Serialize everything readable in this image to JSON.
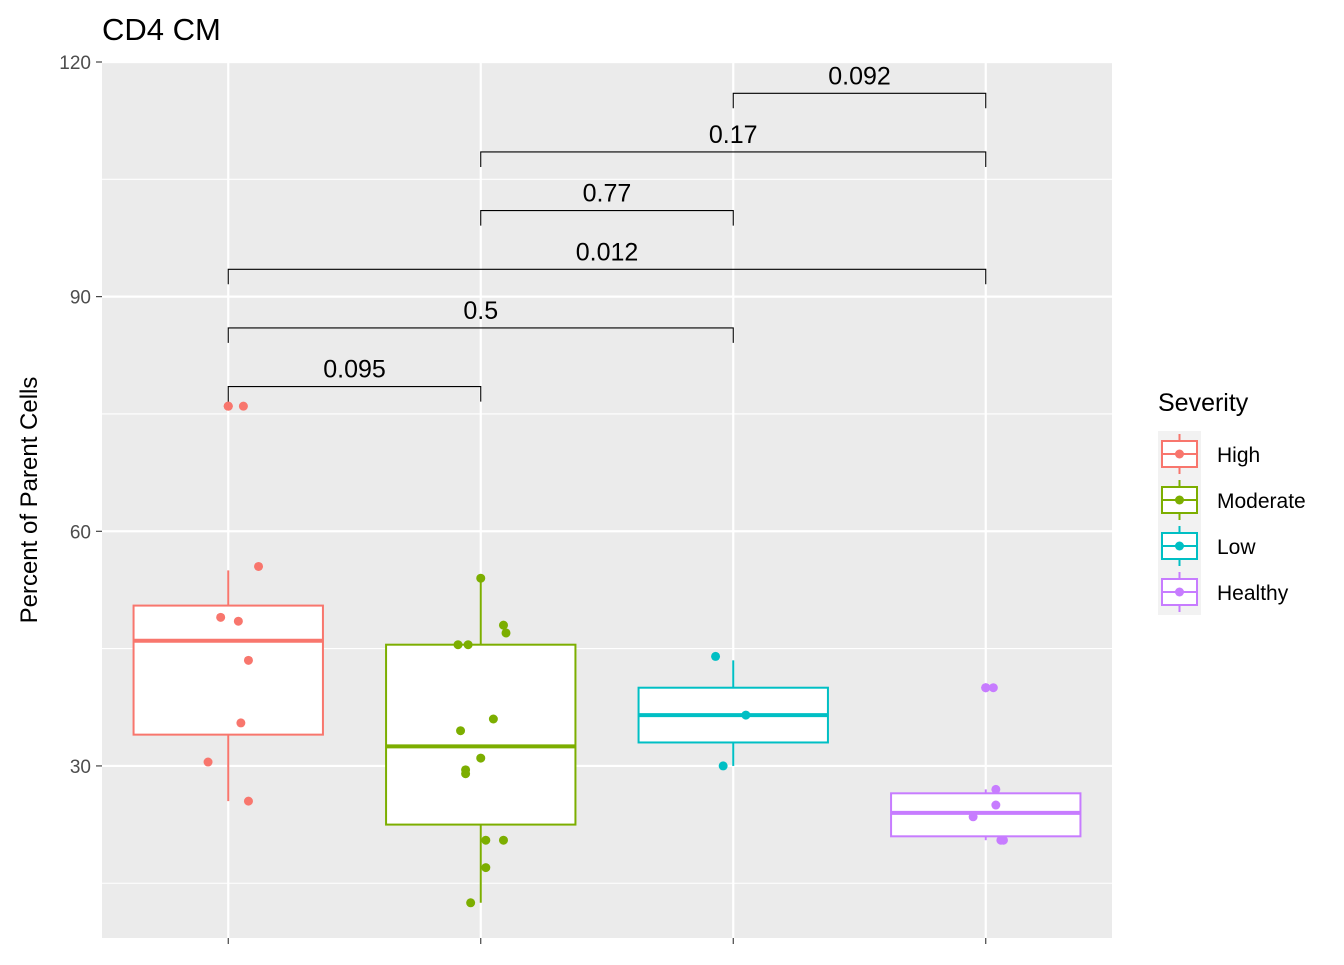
{
  "chart_data": {
    "type": "box",
    "title": "CD4 CM",
    "xlabel": "",
    "ylabel": "Percent of Parent Cells",
    "ylim": [
      8,
      120
    ],
    "y_ticks": [
      30,
      60,
      90,
      120
    ],
    "grid": true,
    "legend": {
      "title": "Severity",
      "position": "right",
      "entries": [
        "High",
        "Moderate",
        "Low",
        "Healthy"
      ]
    },
    "categories": [
      "High",
      "Moderate",
      "Low",
      "Healthy"
    ],
    "series": [
      {
        "name": "High",
        "color": "#F8766D",
        "box": {
          "whisker_low": 25.5,
          "q1": 34,
          "median": 46,
          "q3": 50.5,
          "whisker_high": 55
        },
        "points": [
          {
            "x": 0.0,
            "y": 76
          },
          {
            "x": 0.06,
            "y": 76
          },
          {
            "x": 0.12,
            "y": 55.5
          },
          {
            "x": -0.03,
            "y": 49
          },
          {
            "x": 0.04,
            "y": 48.5
          },
          {
            "x": 0.08,
            "y": 43.5
          },
          {
            "x": 0.05,
            "y": 35.5
          },
          {
            "x": -0.08,
            "y": 30.5
          },
          {
            "x": 0.08,
            "y": 25.5
          }
        ],
        "outliers": [
          76,
          76
        ]
      },
      {
        "name": "Moderate",
        "color": "#7CAE00",
        "box": {
          "whisker_low": 12.5,
          "q1": 22.5,
          "median": 32.5,
          "q3": 45.5,
          "whisker_high": 54
        },
        "points": [
          {
            "x": 0.0,
            "y": 54
          },
          {
            "x": 0.09,
            "y": 48
          },
          {
            "x": 0.1,
            "y": 47
          },
          {
            "x": -0.09,
            "y": 45.5
          },
          {
            "x": -0.05,
            "y": 45.5
          },
          {
            "x": 0.05,
            "y": 36
          },
          {
            "x": -0.08,
            "y": 34.5
          },
          {
            "x": 0.0,
            "y": 31
          },
          {
            "x": -0.06,
            "y": 29.5
          },
          {
            "x": -0.06,
            "y": 29
          },
          {
            "x": 0.02,
            "y": 20.5
          },
          {
            "x": 0.09,
            "y": 20.5
          },
          {
            "x": 0.02,
            "y": 17
          },
          {
            "x": -0.04,
            "y": 12.5
          }
        ],
        "outliers": []
      },
      {
        "name": "Low",
        "color": "#00BFC4",
        "box": {
          "whisker_low": 30,
          "q1": 33,
          "median": 36.5,
          "q3": 40,
          "whisker_high": 43.5
        },
        "points": [
          {
            "x": -0.07,
            "y": 44
          },
          {
            "x": 0.05,
            "y": 36.5
          },
          {
            "x": -0.04,
            "y": 30
          }
        ],
        "outliers": []
      },
      {
        "name": "Healthy",
        "color": "#C77CFF",
        "box": {
          "whisker_low": 20.5,
          "q1": 21,
          "median": 24,
          "q3": 26.5,
          "whisker_high": 27
        },
        "points": [
          {
            "x": 0.0,
            "y": 40
          },
          {
            "x": 0.03,
            "y": 40
          },
          {
            "x": 0.04,
            "y": 27
          },
          {
            "x": 0.04,
            "y": 25
          },
          {
            "x": -0.05,
            "y": 23.5
          },
          {
            "x": 0.06,
            "y": 20.5
          },
          {
            "x": 0.07,
            "y": 20.5
          }
        ],
        "outliers": [
          40,
          40
        ]
      }
    ],
    "comparisons": [
      {
        "from": "High",
        "to": "Moderate",
        "label": "0.095",
        "y": 78.5
      },
      {
        "from": "High",
        "to": "Low",
        "label": "0.5",
        "y": 86
      },
      {
        "from": "High",
        "to": "Healthy",
        "label": "0.012",
        "y": 93.5
      },
      {
        "from": "Moderate",
        "to": "Low",
        "label": "0.77",
        "y": 101
      },
      {
        "from": "Moderate",
        "to": "Healthy",
        "label": "0.17",
        "y": 108.5
      },
      {
        "from": "Low",
        "to": "Healthy",
        "label": "0.092",
        "y": 116
      }
    ]
  }
}
